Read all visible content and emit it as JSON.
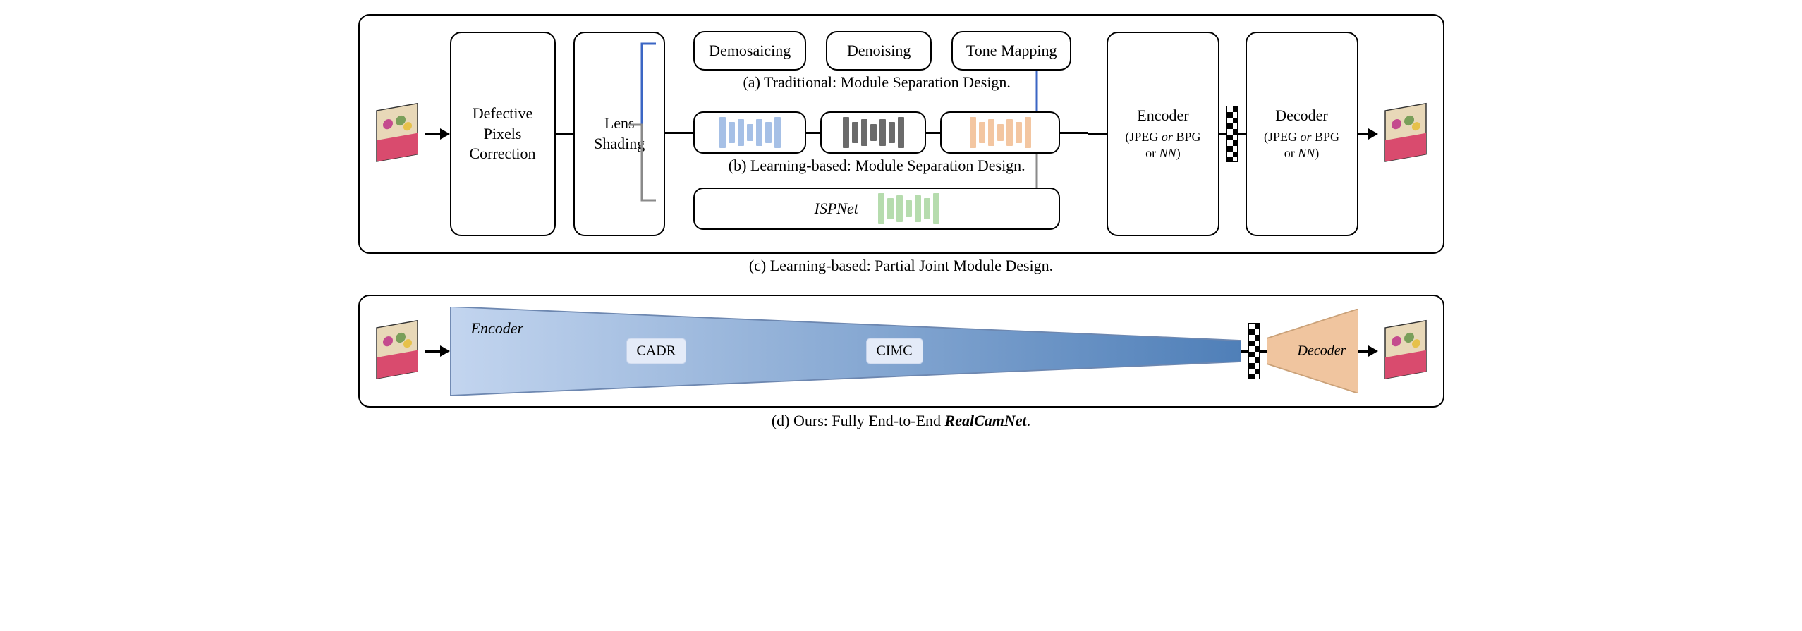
{
  "top": {
    "box_defective": "Defective\nPixels\nCorrection",
    "box_lens": "Lens\nShading",
    "row_a": {
      "box1": "Demosaicing",
      "box2": "Denoising",
      "box3": "Tone Mapping",
      "caption": "(a) Traditional: Module Separation Design.",
      "path_color": "#3b66c4"
    },
    "row_b": {
      "caption": "(b) Learning-based: Module Separation Design.",
      "bars1_color": "#a6c0e6",
      "bars2_color": "#6b6b6b",
      "bars3_color": "#f3c6a1",
      "heights": [
        44,
        30,
        38,
        24,
        38,
        30,
        44
      ]
    },
    "row_c": {
      "label": "ISPNet",
      "caption": "(c) Learning-based: Partial Joint Module Design.",
      "bar_color": "#b6dcae",
      "heights": [
        44,
        30,
        38,
        24,
        38,
        30,
        44
      ],
      "path_color": "#8a8a8a"
    },
    "encoder": "Encoder",
    "encoder_sub": "(JPEG or BPG or NN)",
    "decoder": "Decoder",
    "decoder_sub": "(JPEG or BPG or NN)"
  },
  "bottom": {
    "encoder_label": "Encoder",
    "chip1": "CADR",
    "chip2": "CIMC",
    "encoder_fill_start": "#c3d5ef",
    "encoder_fill_end": "#4f7fb8",
    "encoder_stroke": "#6d87b0",
    "decoder_fill": "#f0c59f",
    "decoder_stroke": "#caa178",
    "decoder_label": "Decoder",
    "caption": "(d) Ours: Fully End-to-End RealCamNet.",
    "caption_bold": "RealCamNet"
  },
  "thumb": {
    "colors": [
      "#d94b6e",
      "#e6c14a",
      "#7a9f5a",
      "#4a7db8",
      "#c44b8e",
      "#f0d8a0"
    ]
  }
}
